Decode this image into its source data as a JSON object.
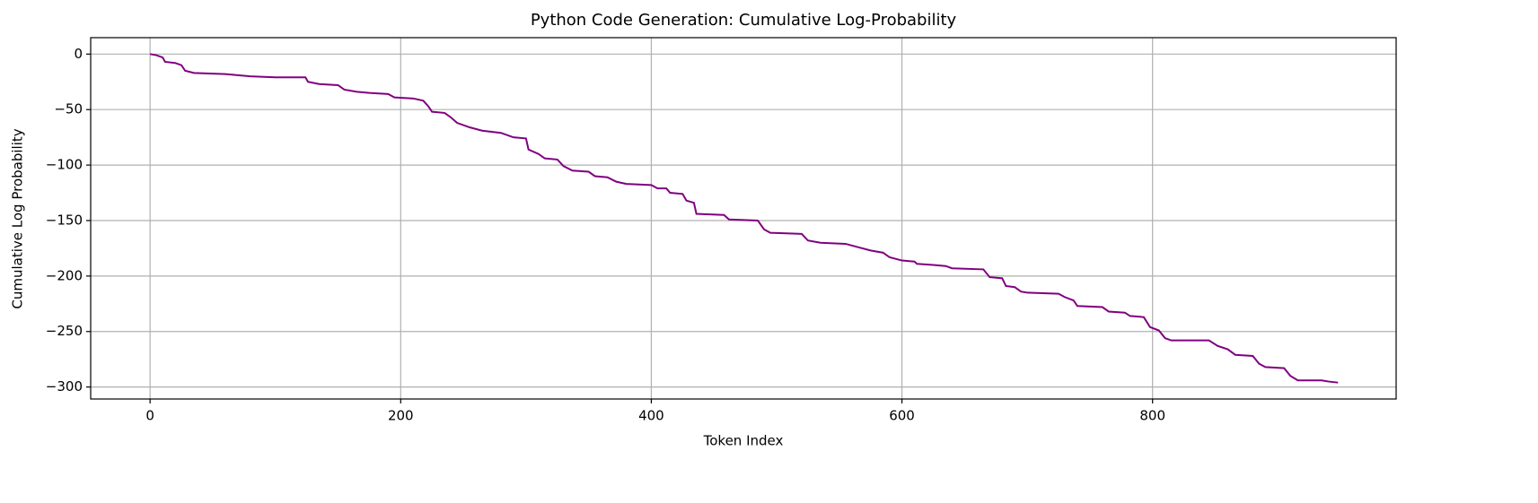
{
  "chart_data": {
    "type": "line",
    "title": "Python Code Generation: Cumulative Log-Probability",
    "x_label": "Token Index",
    "y_label": "Cumulative Log Probability",
    "x": [
      0,
      5,
      10,
      12,
      20,
      25,
      28,
      35,
      60,
      80,
      100,
      124,
      126,
      135,
      150,
      155,
      165,
      175,
      190,
      195,
      210,
      218,
      222,
      225,
      235,
      240,
      245,
      255,
      265,
      280,
      290,
      300,
      302,
      310,
      315,
      325,
      330,
      337,
      350,
      355,
      365,
      372,
      380,
      400,
      405,
      412,
      415,
      425,
      428,
      434,
      436,
      458,
      462,
      485,
      490,
      495,
      520,
      525,
      535,
      555,
      565,
      575,
      585,
      590,
      600,
      610,
      612,
      625,
      635,
      640,
      665,
      670,
      680,
      683,
      690,
      695,
      700,
      725,
      730,
      737,
      740,
      760,
      765,
      778,
      782,
      793,
      798,
      805,
      810,
      815,
      845,
      852,
      860,
      866,
      880,
      885,
      890,
      905,
      910,
      916,
      935,
      940,
      948
    ],
    "series": [
      {
        "name": "Cumulative Log Probability",
        "color": "#800080",
        "values": [
          0,
          -1,
          -3,
          -7,
          -8,
          -10,
          -15,
          -17,
          -18,
          -20,
          -21,
          -21,
          -25,
          -27,
          -28,
          -32,
          -34,
          -35,
          -36,
          -39,
          -40,
          -42,
          -47,
          -52,
          -53,
          -57,
          -62,
          -66,
          -69,
          -71,
          -75,
          -76,
          -86,
          -90,
          -94,
          -95,
          -101,
          -105,
          -106,
          -110,
          -111,
          -115,
          -117,
          -118,
          -121,
          -121,
          -125,
          -126,
          -132,
          -134,
          -144,
          -145,
          -149,
          -150,
          -158,
          -161,
          -162,
          -168,
          -170,
          -171,
          -174,
          -177,
          -179,
          -183,
          -186,
          -187,
          -189,
          -190,
          -191,
          -193,
          -194,
          -201,
          -202,
          -209,
          -210,
          -214,
          -215,
          -216,
          -219,
          -222,
          -227,
          -228,
          -232,
          -233,
          -236,
          -237,
          -246,
          -249,
          -256,
          -258,
          -258,
          -263,
          -266,
          -271,
          -272,
          -279,
          -282,
          -283,
          -290,
          -294,
          -294,
          -295,
          -296
        ]
      }
    ],
    "xlim": [
      -47.4,
      994.4
    ],
    "ylim": [
      -310.8,
      14.8
    ],
    "xticks": [
      0,
      200,
      400,
      600,
      800
    ],
    "yticks": [
      0,
      {
        "value": -50,
        "label": "−50"
      },
      {
        "value": -100,
        "label": "−100"
      },
      {
        "value": -150,
        "label": "−150"
      },
      {
        "value": -200,
        "label": "−200"
      },
      {
        "value": -250,
        "label": "−250"
      },
      {
        "value": -300,
        "label": "−300"
      }
    ],
    "grid": true
  }
}
